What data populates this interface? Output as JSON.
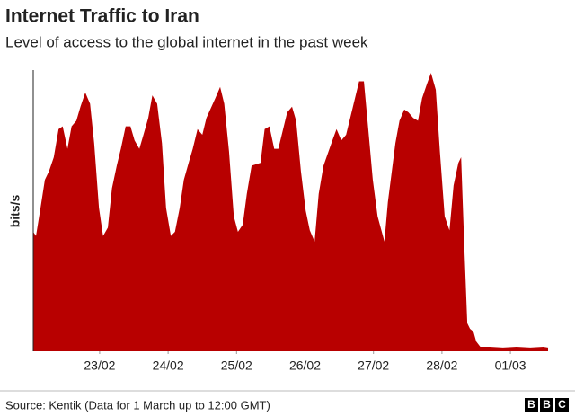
{
  "chart_data": {
    "type": "area",
    "title": "Internet Traffic to Iran",
    "subtitle": "Level of access to the global internet in the past week",
    "y_label": "bits/s",
    "source": "Source: Kentik (Data for 1 March up to 12:00 GMT)",
    "logo": [
      "B",
      "B",
      "C"
    ],
    "color": "#b80000",
    "xlim": [
      22.03,
      29.55
    ],
    "ylim": [
      0,
      100
    ],
    "xticks": [
      {
        "value": 23,
        "label": "23/02"
      },
      {
        "value": 24,
        "label": "24/02"
      },
      {
        "value": 25,
        "label": "25/02"
      },
      {
        "value": 26,
        "label": "26/02"
      },
      {
        "value": 27,
        "label": "27/02"
      },
      {
        "value": 28,
        "label": "28/02"
      },
      {
        "value": 29,
        "label": "01/03"
      }
    ],
    "x": [
      22.03,
      22.07,
      22.13,
      22.2,
      22.26,
      22.33,
      22.4,
      22.46,
      22.53,
      22.59,
      22.66,
      22.72,
      22.79,
      22.86,
      22.92,
      22.99,
      23.05,
      23.12,
      23.18,
      23.25,
      23.31,
      23.38,
      23.45,
      23.51,
      23.58,
      23.64,
      23.71,
      23.77,
      23.84,
      23.91,
      23.97,
      24.04,
      24.1,
      24.17,
      24.23,
      24.3,
      24.36,
      24.43,
      24.5,
      24.56,
      24.69,
      24.76,
      24.82,
      24.89,
      24.96,
      25.02,
      25.09,
      25.15,
      25.22,
      25.35,
      25.41,
      25.48,
      25.55,
      25.61,
      25.68,
      25.74,
      25.81,
      25.87,
      25.94,
      26.01,
      26.07,
      26.14,
      26.2,
      26.27,
      26.4,
      26.46,
      26.53,
      26.6,
      26.66,
      26.73,
      26.79,
      26.86,
      26.92,
      26.99,
      27.06,
      27.16,
      27.21,
      27.32,
      27.38,
      27.45,
      27.51,
      27.58,
      27.65,
      27.71,
      27.78,
      27.84,
      27.91,
      27.97,
      28.04,
      28.11,
      28.17,
      28.24,
      28.28,
      28.33,
      28.37,
      28.41,
      28.46,
      28.5,
      28.56,
      28.7,
      28.89,
      29.09,
      29.29,
      29.48,
      29.55
    ],
    "series": [
      {
        "color": "#b80000",
        "values": [
          42.5,
          41,
          50,
          61,
          64,
          69,
          79,
          80,
          72,
          80,
          82,
          87,
          92,
          88,
          74,
          51,
          41,
          44,
          58,
          66,
          72,
          80,
          80,
          75,
          72,
          77,
          83,
          91,
          88,
          74,
          51,
          41,
          42.5,
          51,
          61,
          67,
          72,
          79,
          77,
          83,
          90,
          94,
          88,
          71,
          48,
          42.5,
          45,
          56,
          66,
          67,
          79,
          80,
          72,
          72,
          79,
          85,
          87,
          82,
          64,
          50,
          43,
          39,
          56,
          66,
          75,
          79,
          75,
          77,
          83,
          90,
          96,
          96,
          80,
          61,
          48,
          39,
          53,
          74,
          82,
          86,
          85,
          83,
          82,
          90,
          95,
          99,
          93,
          71,
          48,
          43,
          59,
          67,
          69,
          35,
          10,
          8,
          7,
          3.5,
          1.6,
          1.6,
          1.3,
          1.6,
          1.3,
          1.6,
          1.3
        ]
      }
    ]
  }
}
